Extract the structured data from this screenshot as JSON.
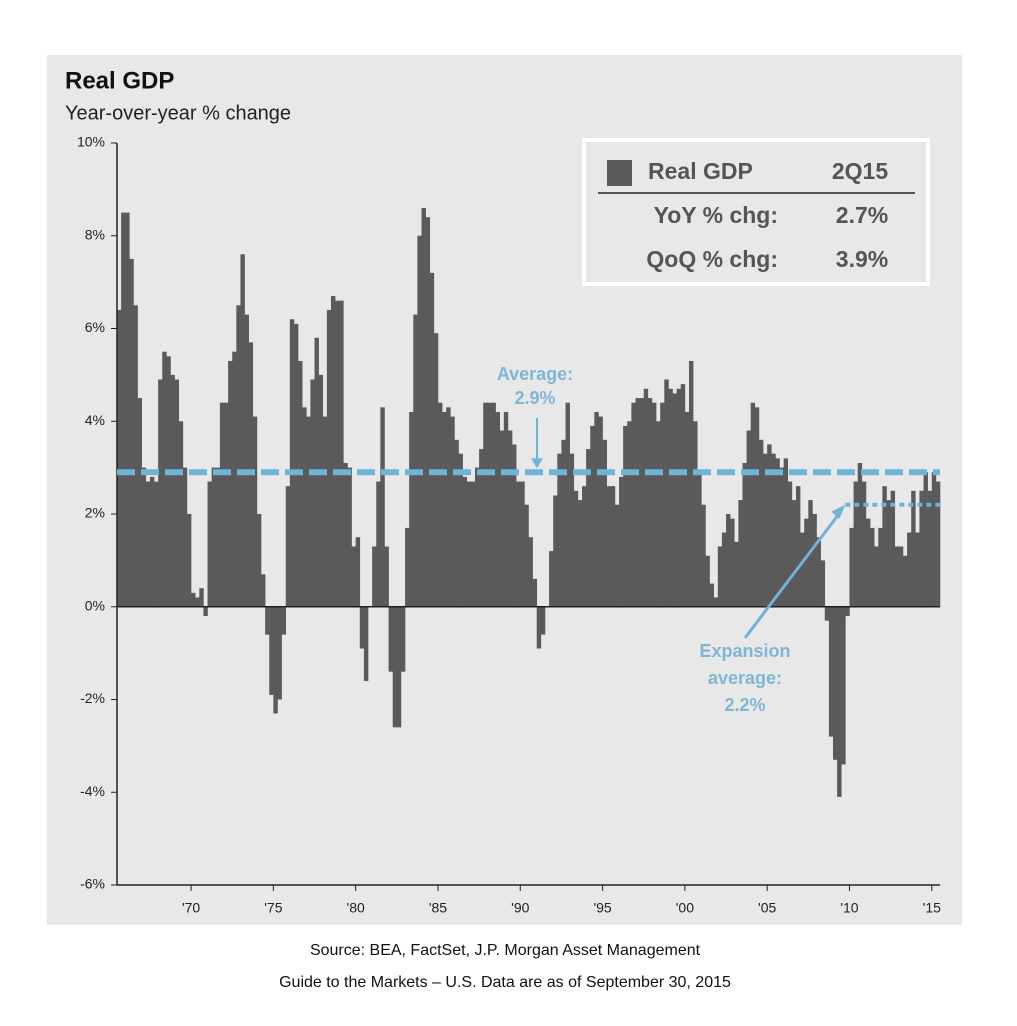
{
  "chart_data": {
    "type": "bar",
    "title": "Real GDP",
    "subtitle": "Year-over-year % change",
    "color": "#5a5a5a",
    "x": [
      1965.5,
      1965.75,
      1966,
      1966.25,
      1966.5,
      1966.75,
      1967,
      1967.25,
      1967.5,
      1967.75,
      1968,
      1968.25,
      1968.5,
      1968.75,
      1969,
      1969.25,
      1969.5,
      1969.75,
      1970,
      1970.25,
      1970.5,
      1970.75,
      1971,
      1971.25,
      1971.5,
      1971.75,
      1972,
      1972.25,
      1972.5,
      1972.75,
      1973,
      1973.25,
      1973.5,
      1973.75,
      1974,
      1974.25,
      1974.5,
      1974.75,
      1975,
      1975.25,
      1975.5,
      1975.75,
      1976,
      1976.25,
      1976.5,
      1976.75,
      1977,
      1977.25,
      1977.5,
      1977.75,
      1978,
      1978.25,
      1978.5,
      1978.75,
      1979,
      1979.25,
      1979.5,
      1979.75,
      1980,
      1980.25,
      1980.5,
      1980.75,
      1981,
      1981.25,
      1981.5,
      1981.75,
      1982,
      1982.25,
      1982.5,
      1982.75,
      1983,
      1983.25,
      1983.5,
      1983.75,
      1984,
      1984.25,
      1984.5,
      1984.75,
      1985,
      1985.25,
      1985.5,
      1985.75,
      1986,
      1986.25,
      1986.5,
      1986.75,
      1987,
      1987.25,
      1987.5,
      1987.75,
      1988,
      1988.25,
      1988.5,
      1988.75,
      1989,
      1989.25,
      1989.5,
      1989.75,
      1990,
      1990.25,
      1990.5,
      1990.75,
      1991,
      1991.25,
      1991.5,
      1991.75,
      1992,
      1992.25,
      1992.5,
      1992.75,
      1993,
      1993.25,
      1993.5,
      1993.75,
      1994,
      1994.25,
      1994.5,
      1994.75,
      1995,
      1995.25,
      1995.5,
      1995.75,
      1996,
      1996.25,
      1996.5,
      1996.75,
      1997,
      1997.25,
      1997.5,
      1997.75,
      1998,
      1998.25,
      1998.5,
      1998.75,
      1999,
      1999.25,
      1999.5,
      1999.75,
      2000,
      2000.25,
      2000.5,
      2000.75,
      2001,
      2001.25,
      2001.5,
      2001.75,
      2002,
      2002.25,
      2002.5,
      2002.75,
      2003,
      2003.25,
      2003.5,
      2003.75,
      2004,
      2004.25,
      2004.5,
      2004.75,
      2005,
      2005.25,
      2005.5,
      2005.75,
      2006,
      2006.25,
      2006.5,
      2006.75,
      2007,
      2007.25,
      2007.5,
      2007.75,
      2008,
      2008.25,
      2008.5,
      2008.75,
      2009,
      2009.25,
      2009.5,
      2009.75,
      2010,
      2010.25,
      2010.5,
      2010.75,
      2011,
      2011.25,
      2011.5,
      2011.75,
      2012,
      2012.25,
      2012.5,
      2012.75,
      2013,
      2013.25,
      2013.5,
      2013.75,
      2014,
      2014.25,
      2014.5,
      2014.75,
      2015,
      2015.25
    ],
    "values": [
      6.4,
      8.5,
      8.5,
      7.5,
      6.5,
      4.5,
      3.0,
      2.7,
      2.8,
      2.7,
      4.9,
      5.5,
      5.4,
      5.0,
      4.9,
      4.0,
      3.0,
      2.0,
      0.3,
      0.2,
      0.4,
      -0.2,
      2.7,
      3.0,
      3.0,
      4.4,
      4.4,
      5.3,
      5.5,
      6.5,
      7.6,
      6.3,
      5.7,
      4.1,
      2.0,
      0.7,
      -0.6,
      -1.9,
      -2.3,
      -2.0,
      -0.6,
      2.6,
      6.2,
      6.1,
      5.3,
      4.3,
      4.1,
      4.9,
      5.8,
      5.0,
      4.1,
      6.4,
      6.7,
      6.6,
      6.6,
      3.1,
      3.0,
      1.3,
      1.5,
      -0.9,
      -1.6,
      0.0,
      1.3,
      2.7,
      4.3,
      1.3,
      -1.4,
      -2.6,
      -2.6,
      -1.4,
      1.7,
      4.2,
      6.3,
      8.0,
      8.6,
      8.4,
      7.2,
      5.9,
      4.4,
      4.2,
      4.3,
      4.1,
      3.6,
      3.3,
      2.8,
      2.7,
      2.7,
      3.0,
      3.4,
      4.4,
      4.4,
      4.4,
      4.2,
      3.8,
      4.2,
      3.8,
      3.5,
      2.7,
      2.7,
      2.2,
      1.5,
      0.6,
      -0.9,
      -0.6,
      0.0,
      1.2,
      2.4,
      3.3,
      3.6,
      4.4,
      3.3,
      2.5,
      2.3,
      2.6,
      3.4,
      3.9,
      4.2,
      4.1,
      3.6,
      2.6,
      2.6,
      2.2,
      2.8,
      3.9,
      4.0,
      4.4,
      4.5,
      4.5,
      4.7,
      4.5,
      4.4,
      4.0,
      4.4,
      4.9,
      4.7,
      4.6,
      4.7,
      4.8,
      4.2,
      5.3,
      4.0,
      2.9,
      2.2,
      1.1,
      0.5,
      0.2,
      1.3,
      1.6,
      2.0,
      1.9,
      1.4,
      2.3,
      3.1,
      3.8,
      4.4,
      4.3,
      3.6,
      3.3,
      3.5,
      3.3,
      3.2,
      3.0,
      3.2,
      2.7,
      2.3,
      2.6,
      1.6,
      1.9,
      2.3,
      2.0,
      1.5,
      1.0,
      -0.3,
      -2.8,
      -3.3,
      -4.1,
      -3.4,
      -0.2,
      1.7,
      2.7,
      3.1,
      2.7,
      1.9,
      1.7,
      1.3,
      1.7,
      2.6,
      2.3,
      2.5,
      1.3,
      1.3,
      1.1,
      1.6,
      2.5,
      1.6,
      2.5,
      2.9,
      2.5,
      2.9,
      2.7
    ],
    "xlim": [
      1965.5,
      2015.5
    ],
    "xticks": [
      {
        "value": 1970,
        "label": "'70"
      },
      {
        "value": 1975,
        "label": "'75"
      },
      {
        "value": 1980,
        "label": "'80"
      },
      {
        "value": 1985,
        "label": "'85"
      },
      {
        "value": 1990,
        "label": "'90"
      },
      {
        "value": 1995,
        "label": "'95"
      },
      {
        "value": 2000,
        "label": "'00"
      },
      {
        "value": 2005,
        "label": "'05"
      },
      {
        "value": 2010,
        "label": "'10"
      },
      {
        "value": 2015,
        "label": "'15"
      }
    ],
    "ylim": [
      -6,
      10
    ],
    "yticks": [
      {
        "value": -6,
        "label": "-6%"
      },
      {
        "value": -4,
        "label": "-4%"
      },
      {
        "value": -2,
        "label": "-2%"
      },
      {
        "value": 0,
        "label": "0%"
      },
      {
        "value": 2,
        "label": "2%"
      },
      {
        "value": 4,
        "label": "4%"
      },
      {
        "value": 6,
        "label": "6%"
      },
      {
        "value": 8,
        "label": "8%"
      },
      {
        "value": 10,
        "label": "10%"
      }
    ],
    "average": {
      "label": [
        "Average:",
        "2.9%"
      ],
      "value": 2.9,
      "color": "#6fb3d8"
    },
    "expansion_average": {
      "label": [
        "Expansion",
        "average:",
        "2.2%"
      ],
      "value": 2.2,
      "start": 2009.75,
      "color": "#6fb3d8"
    },
    "legend_table": {
      "header": [
        "Real GDP",
        "2Q15"
      ],
      "rows": [
        [
          "YoY % chg:",
          "2.7%"
        ],
        [
          "QoQ % chg:",
          "3.9%"
        ]
      ]
    }
  },
  "footer": [
    "Source: BEA, FactSet, J.P. Morgan Asset Management",
    "Guide to the Markets – U.S. Data are as of September 30, 2015"
  ]
}
